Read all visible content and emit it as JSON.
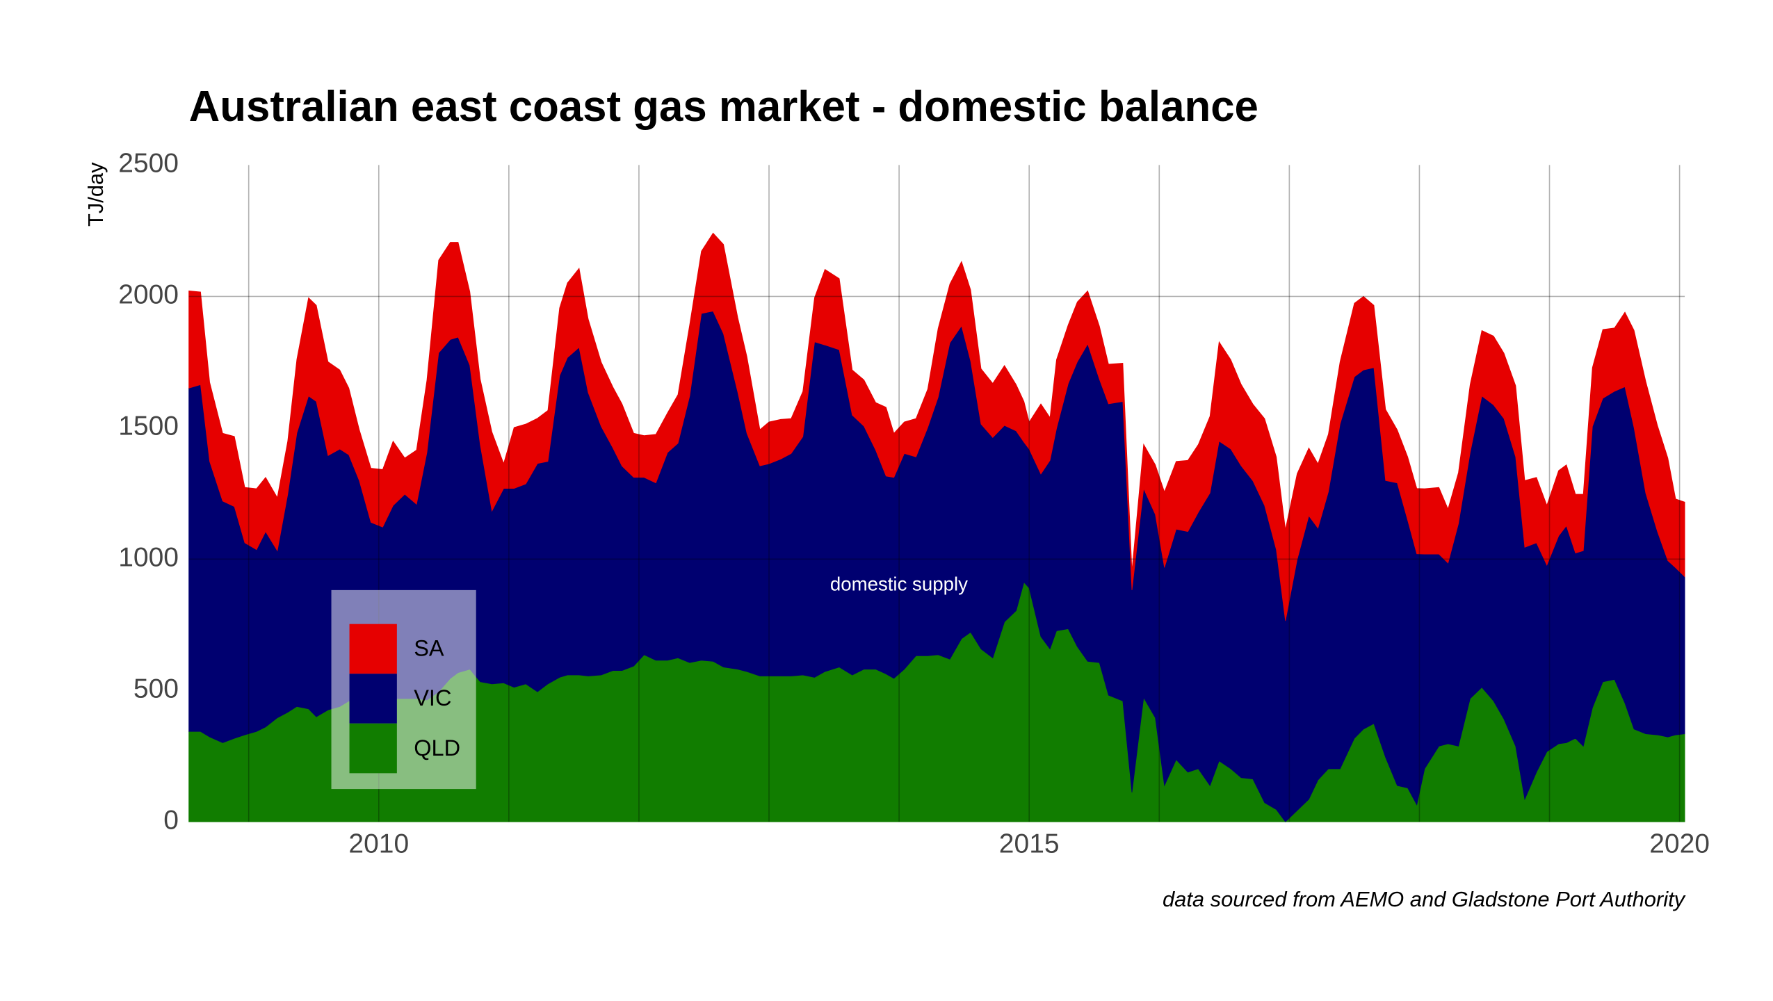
{
  "chart_data": {
    "type": "stacked_area",
    "title": "Australian east coast gas market - domestic balance",
    "y_label": "TJ/day",
    "annotation": "domestic supply",
    "source": "data sourced from AEMO and Gladstone Port Authority",
    "legend": "lower left",
    "xlim": [
      2008.54,
      2020.04
    ],
    "ylim": [
      0,
      2500
    ],
    "xticks": [
      2010,
      2015,
      2020
    ],
    "yticks": [
      0,
      500,
      1000,
      1500,
      2000,
      2500
    ],
    "xgrid": [
      2009,
      2010,
      2011,
      2012,
      2013,
      2014,
      2015,
      2016,
      2017,
      2018,
      2019,
      2020
    ],
    "ygrid": [
      1000,
      2000
    ],
    "x": [
      2008.54,
      2008.63,
      2008.7,
      2008.8,
      2008.89,
      2008.97,
      2009.06,
      2009.13,
      2009.22,
      2009.3,
      2009.37,
      2009.46,
      2009.52,
      2009.61,
      2009.7,
      2009.77,
      2009.85,
      2009.94,
      2010.03,
      2010.11,
      2010.2,
      2010.29,
      2010.37,
      2010.46,
      2010.55,
      2010.61,
      2010.7,
      2010.78,
      2010.87,
      2010.96,
      2011.04,
      2011.13,
      2011.22,
      2011.3,
      2011.39,
      2011.45,
      2011.54,
      2011.61,
      2011.71,
      2011.8,
      2011.87,
      2011.96,
      2012.04,
      2012.13,
      2012.22,
      2012.3,
      2012.39,
      2012.48,
      2012.57,
      2012.65,
      2012.76,
      2012.83,
      2012.93,
      2013.0,
      2013.09,
      2013.17,
      2013.26,
      2013.35,
      2013.43,
      2013.54,
      2013.64,
      2013.73,
      2013.82,
      2013.9,
      2013.96,
      2014.04,
      2014.13,
      2014.22,
      2014.3,
      2014.39,
      2014.48,
      2014.55,
      2014.63,
      2014.72,
      2014.81,
      2014.9,
      2014.96,
      2015.0,
      2015.09,
      2015.16,
      2015.21,
      2015.3,
      2015.37,
      2015.45,
      2015.54,
      2015.61,
      2015.72,
      2015.79,
      2015.88,
      2015.97,
      2016.04,
      2016.13,
      2016.22,
      2016.3,
      2016.39,
      2016.46,
      2016.55,
      2016.63,
      2016.72,
      2016.81,
      2016.9,
      2016.97,
      2017.06,
      2017.15,
      2017.22,
      2017.3,
      2017.39,
      2017.5,
      2017.57,
      2017.65,
      2017.74,
      2017.83,
      2017.91,
      2017.98,
      2018.04,
      2018.15,
      2018.22,
      2018.3,
      2018.39,
      2018.48,
      2018.57,
      2018.65,
      2018.74,
      2018.81,
      2018.9,
      2018.98,
      2019.07,
      2019.13,
      2019.2,
      2019.26,
      2019.33,
      2019.41,
      2019.5,
      2019.58,
      2019.65,
      2019.74,
      2019.83,
      2019.91,
      2019.97,
      2020.04
    ],
    "series": [
      {
        "name": "QLD",
        "color": "#117d00",
        "values": [
          344,
          344,
          323,
          301,
          318,
          331,
          344,
          361,
          396,
          417,
          439,
          430,
          400,
          426,
          439,
          460,
          473,
          473,
          473,
          469,
          469,
          469,
          464,
          495,
          546,
          568,
          581,
          533,
          525,
          529,
          512,
          525,
          495,
          525,
          550,
          559,
          559,
          555,
          559,
          576,
          576,
          593,
          636,
          615,
          615,
          624,
          606,
          615,
          611,
          589,
          581,
          572,
          555,
          555,
          555,
          555,
          559,
          550,
          572,
          589,
          559,
          581,
          581,
          563,
          546,
          581,
          632,
          632,
          636,
          619,
          697,
          722,
          658,
          624,
          761,
          804,
          912,
          890,
          705,
          658,
          727,
          735,
          667,
          611,
          606,
          482,
          460,
          112,
          473,
          396,
          138,
          237,
          189,
          202,
          138,
          232,
          202,
          168,
          163,
          73,
          47,
          0,
          43,
          86,
          159,
          202,
          202,
          318,
          353,
          374,
          245,
          138,
          129,
          65,
          202,
          288,
          297,
          288,
          469,
          512,
          460,
          391,
          288,
          86,
          189,
          267,
          297,
          301,
          318,
          288,
          434,
          533,
          542,
          452,
          353,
          335,
          331,
          323,
          331,
          335
        ]
      },
      {
        "name": "VIC",
        "color": "#000070",
        "values": [
          1307,
          1320,
          1049,
          920,
          882,
          731,
          692,
          744,
          636,
          830,
          1041,
          1191,
          1200,
          968,
          980,
          937,
          826,
          667,
          649,
          735,
          778,
          740,
          942,
          1290,
          1290,
          1277,
          1157,
          903,
          658,
          740,
          757,
          761,
          869,
          847,
          1148,
          1208,
          1247,
          1079,
          946,
          847,
          778,
          718,
          675,
          675,
          791,
          817,
          1015,
          1320,
          1333,
          1269,
          1054,
          907,
          800,
          808,
          826,
          847,
          907,
          1277,
          1243,
          1208,
          989,
          925,
          834,
          753,
          765,
          821,
          757,
          869,
          980,
          1204,
          1191,
          1032,
          856,
          839,
          748,
          684,
          533,
          529,
          619,
          718,
          770,
          933,
          1084,
          1208,
          1079,
          1109,
          1140,
          770,
          796,
          774,
          830,
          877,
          916,
          976,
          1114,
          1217,
          1217,
          1187,
          1135,
          1131,
          989,
          765,
          955,
          1079,
          959,
          1054,
          1312,
          1376,
          1367,
          1355,
          1054,
          1152,
          1019,
          955,
          817,
          731,
          688,
          847,
          937,
          1109,
          1127,
          1144,
          1101,
          959,
          873,
          710,
          791,
          826,
          705,
          744,
          1071,
          1079,
          1097,
          1204,
          1148,
          916,
          774,
          671,
          636,
          598
        ]
      },
      {
        "name": "SA",
        "color": "#e60000",
        "values": [
          370,
          353,
          301,
          258,
          267,
          211,
          232,
          206,
          202,
          202,
          280,
          374,
          366,
          357,
          301,
          254,
          194,
          206,
          219,
          245,
          138,
          206,
          275,
          353,
          370,
          361,
          280,
          249,
          301,
          95,
          232,
          228,
          172,
          194,
          258,
          284,
          301,
          280,
          245,
          232,
          237,
          168,
          159,
          185,
          151,
          185,
          271,
          237,
          297,
          340,
          284,
          292,
          138,
          159,
          151,
          133,
          172,
          168,
          288,
          271,
          172,
          176,
          181,
          262,
          168,
          120,
          146,
          146,
          262,
          224,
          245,
          271,
          211,
          206,
          228,
          176,
          155,
          103,
          267,
          163,
          262,
          224,
          228,
          202,
          202,
          151,
          146,
          73,
          168,
          189,
          288,
          258,
          271,
          258,
          292,
          378,
          340,
          310,
          292,
          331,
          353,
          348,
          327,
          258,
          245,
          219,
          237,
          280,
          280,
          237,
          271,
          202,
          241,
          249,
          249,
          254,
          206,
          194,
          258,
          249,
          262,
          249,
          271,
          254,
          249,
          228,
          249,
          232,
          224,
          215,
          224,
          262,
          241,
          284,
          370,
          426,
          404,
          391,
          262,
          284
        ]
      }
    ]
  }
}
